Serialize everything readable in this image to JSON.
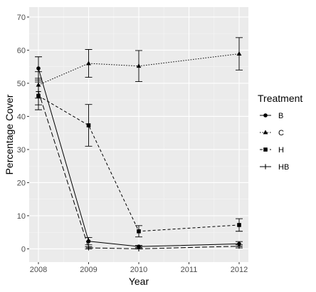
{
  "chart_data": {
    "type": "line",
    "title": "",
    "xlabel": "Year",
    "ylabel": "Percentage Cover",
    "x": [
      2008,
      2009,
      2010,
      2011,
      2012
    ],
    "x_ticks": [
      "2008",
      "2009",
      "2010",
      "2011",
      "2012"
    ],
    "xlim": [
      2008,
      2012
    ],
    "ylim": [
      -4,
      73
    ],
    "y_ticks": [
      0,
      10,
      20,
      30,
      40,
      50,
      60,
      70
    ],
    "grid": true,
    "legend_title": "Treatment",
    "legend_position": "right",
    "series": [
      {
        "name": "B",
        "marker": "circle",
        "linestyle": "solid",
        "points": [
          {
            "x": 2008,
            "y": 54.5,
            "lo": 51.0,
            "hi": 58.0
          },
          {
            "x": 2009,
            "y": 2.3,
            "lo": 1.2,
            "hi": 3.4
          },
          {
            "x": 2010,
            "y": 0.7,
            "lo": 0.4,
            "hi": 1.0
          },
          {
            "x": 2012,
            "y": 1.5,
            "lo": 0.8,
            "hi": 2.2
          }
        ]
      },
      {
        "name": "C",
        "marker": "triangle",
        "linestyle": "dotted",
        "points": [
          {
            "x": 2008,
            "y": 49.5,
            "lo": 45.5,
            "hi": 53.5
          },
          {
            "x": 2009,
            "y": 56.0,
            "lo": 51.8,
            "hi": 60.2
          },
          {
            "x": 2010,
            "y": 55.2,
            "lo": 50.5,
            "hi": 59.9
          },
          {
            "x": 2012,
            "y": 58.9,
            "lo": 54.0,
            "hi": 63.8
          }
        ]
      },
      {
        "name": "H",
        "marker": "square",
        "linestyle": "dashed",
        "points": [
          {
            "x": 2008,
            "y": 46.2,
            "lo": 42.0,
            "hi": 50.4
          },
          {
            "x": 2009,
            "y": 37.3,
            "lo": 31.0,
            "hi": 43.6
          },
          {
            "x": 2010,
            "y": 5.3,
            "lo": 3.6,
            "hi": 7.0
          },
          {
            "x": 2012,
            "y": 7.2,
            "lo": 5.3,
            "hi": 9.1
          }
        ]
      },
      {
        "name": "HB",
        "marker": "plus",
        "linestyle": "longdash",
        "points": [
          {
            "x": 2008,
            "y": 47.5,
            "lo": 43.5,
            "hi": 51.5
          },
          {
            "x": 2009,
            "y": 0.3,
            "lo": 0.0,
            "hi": 0.6
          },
          {
            "x": 2010,
            "y": 0.0,
            "lo": 0.0,
            "hi": 0.1
          },
          {
            "x": 2012,
            "y": 0.8,
            "lo": 0.3,
            "hi": 1.3
          }
        ]
      }
    ],
    "colors": {
      "panel_background": "#ebebeb",
      "grid_major": "#ffffff",
      "line": "#000000"
    }
  }
}
